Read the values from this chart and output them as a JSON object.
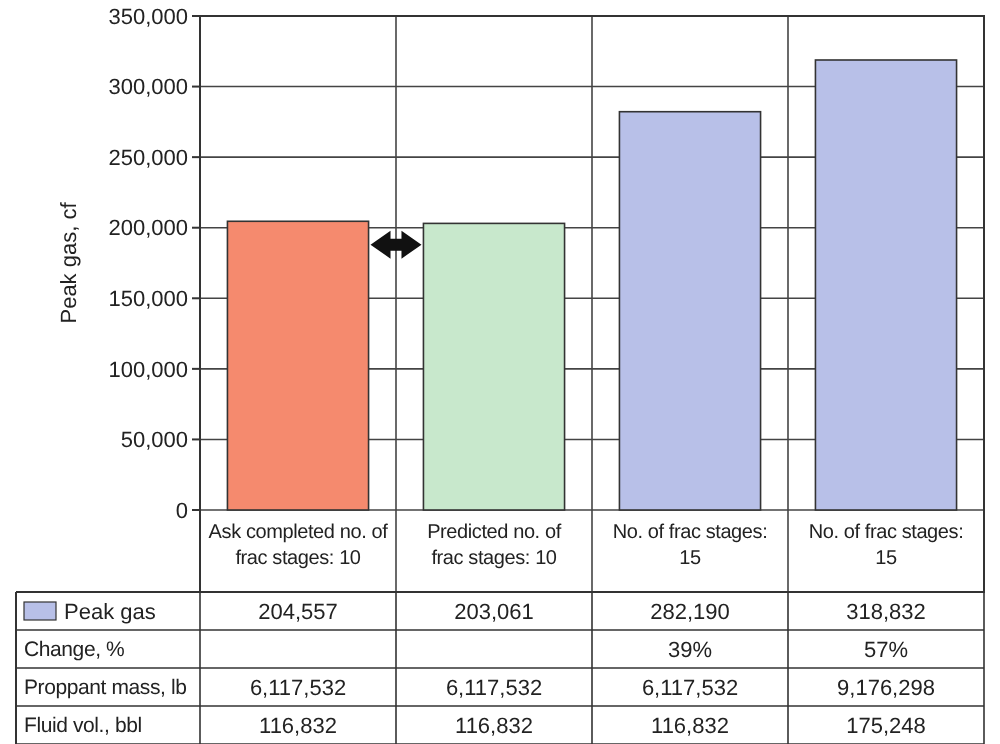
{
  "chart_data": {
    "type": "bar",
    "ylabel": "Peak gas, cf",
    "categories": [
      "Ask completed no. of frac stages: 10",
      "Predicted no. of frac stages: 10",
      "No. of frac stages: 15",
      "No. of frac stages: 15"
    ],
    "series": [
      {
        "name": "Peak gas",
        "color": "#b8c0e8",
        "colors": [
          "#f58a6e",
          "#c8e8cc",
          "#b8c0e8",
          "#b8c0e8"
        ],
        "values": [
          204557,
          203061,
          282190,
          318832
        ],
        "value_labels": [
          "204,557",
          "203,061",
          "282,190",
          "318,832"
        ]
      }
    ],
    "ylim": [
      0,
      350000
    ],
    "yticks": [
      {
        "value": 0,
        "label": "0"
      },
      {
        "value": 50000,
        "label": "50,000"
      },
      {
        "value": 100000,
        "label": "100,000"
      },
      {
        "value": 150000,
        "label": "150,000"
      },
      {
        "value": 200000,
        "label": "200,000"
      },
      {
        "value": 250000,
        "label": "250,000"
      },
      {
        "value": 300000,
        "label": "300,000"
      },
      {
        "value": 350000,
        "label": "350,000"
      }
    ],
    "grid": true,
    "legend": "bottom left",
    "annotations": [
      "Change, %",
      null,
      null,
      "39%",
      "57%",
      "Proppant mass, lb",
      "6,117,532",
      "6,117,532",
      "6,117,532",
      "9,176,298",
      "Fluid vol., bbl",
      "116,832",
      "116,832",
      "116,832",
      "175,248"
    ]
  }
}
